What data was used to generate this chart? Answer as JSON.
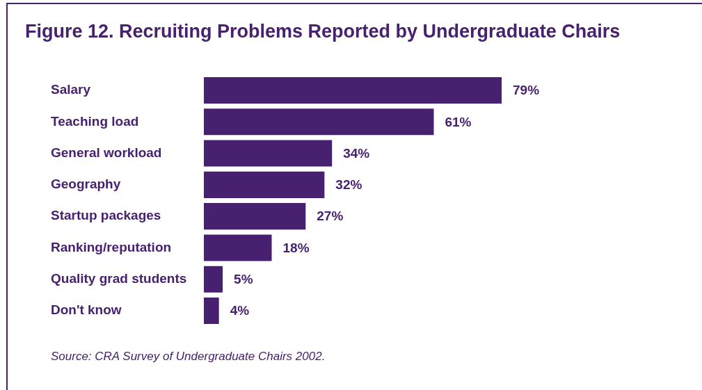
{
  "chart_data": {
    "type": "bar",
    "orientation": "horizontal",
    "title": "Figure 12. Recruiting Problems Reported by Undergraduate Chairs",
    "categories": [
      "Salary",
      "Teaching load",
      "General workload",
      "Geography",
      "Startup packages",
      "Ranking/reputation",
      "Quality grad students",
      "Don't know"
    ],
    "values": [
      79,
      61,
      34,
      32,
      27,
      18,
      5,
      4
    ],
    "value_labels": [
      "79%",
      "61%",
      "34%",
      "32%",
      "27%",
      "18%",
      "5%",
      "4%"
    ],
    "color": "#47206f",
    "grid": false,
    "legend": false,
    "tick_labels": "y",
    "annotations": [
      "Source: CRA Survey of Undergraduate Chairs 2002."
    ]
  }
}
